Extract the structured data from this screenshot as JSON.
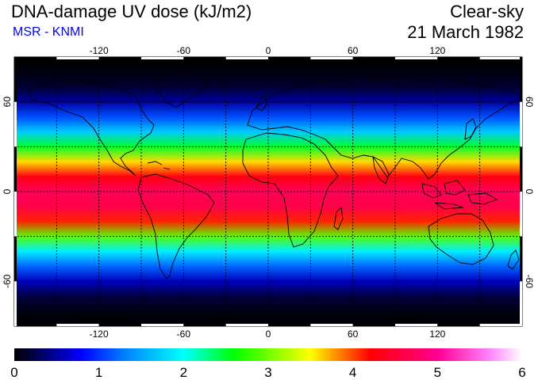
{
  "header": {
    "title": "DNA-damage UV dose (kJ/m2)",
    "source": "MSR - KNMI",
    "condition": "Clear-sky",
    "date": "21 March 1982"
  },
  "map": {
    "projection": "equirectangular",
    "lon_range": [
      -180,
      180
    ],
    "lat_range": [
      -90,
      90
    ],
    "grid": "dashed, every 30 degrees",
    "lon_ticks": [
      -120,
      -60,
      0,
      60,
      120
    ],
    "lon_tick_labels": [
      "-120",
      "-60",
      "0",
      "60",
      "120"
    ],
    "lat_ticks": [
      60,
      0,
      -60
    ],
    "lat_tick_labels": [
      "60",
      "0",
      "-60"
    ],
    "coastlines": "black outline"
  },
  "colorbar": {
    "min": 0,
    "max": 6,
    "tick_values": [
      0,
      1,
      2,
      3,
      4,
      5,
      6
    ],
    "tick_labels": [
      "0",
      "1",
      "2",
      "3",
      "4",
      "5",
      "6"
    ],
    "stops": [
      {
        "value": 0.0,
        "color": "#000000"
      },
      {
        "value": 0.8,
        "color": "#0000ff"
      },
      {
        "value": 1.3,
        "color": "#0080ff"
      },
      {
        "value": 2.0,
        "color": "#00ffff"
      },
      {
        "value": 2.6,
        "color": "#00ff00"
      },
      {
        "value": 3.5,
        "color": "#ffff00"
      },
      {
        "value": 4.2,
        "color": "#ff0000"
      },
      {
        "value": 5.0,
        "color": "#ff0090"
      },
      {
        "value": 5.6,
        "color": "#ff80ff"
      },
      {
        "value": 6.0,
        "color": "#ffffff"
      }
    ]
  },
  "chart_data": {
    "type": "heatmap",
    "variable": "DNA-damage UV dose",
    "unit": "kJ/m2",
    "zonal_profile": {
      "lat": [
        -90,
        -80,
        -70,
        -60,
        -50,
        -40,
        -30,
        -20,
        -10,
        0,
        10,
        20,
        30,
        40,
        50,
        60,
        70,
        80,
        90
      ],
      "value": [
        0.0,
        0.05,
        0.2,
        0.6,
        1.2,
        1.9,
        2.9,
        4.1,
        4.6,
        4.7,
        4.3,
        3.6,
        2.5,
        1.7,
        1.1,
        0.5,
        0.15,
        0.05,
        0.0
      ]
    }
  }
}
